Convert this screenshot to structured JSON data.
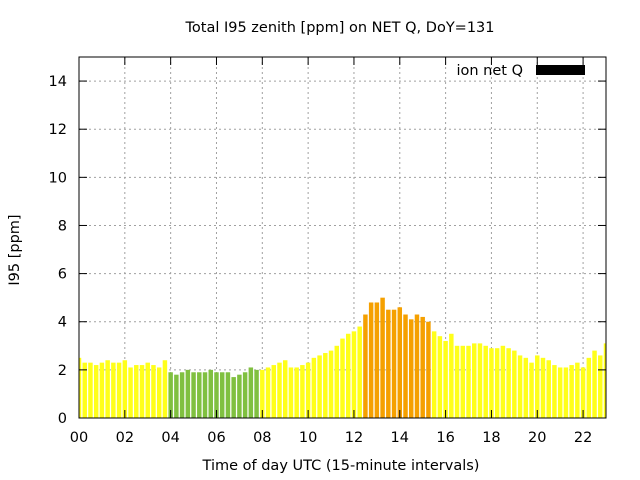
{
  "chart_data": {
    "type": "bar",
    "title": "Total I95 zenith [ppm] on NET Q, DoY=131",
    "xlabel": "Time of day UTC (15-minute intervals)",
    "ylabel": "I95 [ppm]",
    "xlim": [
      0,
      23
    ],
    "ylim": [
      0,
      15
    ],
    "x_step_hours": 0.25,
    "x_ticks": [
      {
        "value": 0,
        "label": "00"
      },
      {
        "value": 2,
        "label": "02"
      },
      {
        "value": 4,
        "label": "04"
      },
      {
        "value": 6,
        "label": "06"
      },
      {
        "value": 8,
        "label": "08"
      },
      {
        "value": 10,
        "label": "10"
      },
      {
        "value": 12,
        "label": "12"
      },
      {
        "value": 14,
        "label": "14"
      },
      {
        "value": 16,
        "label": "16"
      },
      {
        "value": 18,
        "label": "18"
      },
      {
        "value": 20,
        "label": "20"
      },
      {
        "value": 22,
        "label": "22"
      }
    ],
    "y_ticks": [
      {
        "value": 0,
        "label": "0"
      },
      {
        "value": 2,
        "label": "2"
      },
      {
        "value": 4,
        "label": "4"
      },
      {
        "value": 6,
        "label": "6"
      },
      {
        "value": 8,
        "label": "8"
      },
      {
        "value": 10,
        "label": "10"
      },
      {
        "value": 12,
        "label": "12"
      },
      {
        "value": 14,
        "label": "14"
      }
    ],
    "grid": true,
    "legend": {
      "label": "ion net Q",
      "color": "#000000",
      "placement": "top-right"
    },
    "colors": {
      "yellow": "#ffff1a",
      "green": "#80c040",
      "orange": "#f5a000",
      "grid": "#a0a0a0"
    },
    "series": [
      {
        "values": [
          2.5,
          2.3,
          2.3,
          2.2,
          2.3,
          2.4,
          2.3,
          2.3,
          2.4,
          2.1,
          2.2,
          2.2,
          2.3,
          2.2,
          2.1,
          2.4,
          1.9,
          1.8,
          1.9,
          2.0,
          1.9,
          1.9,
          1.9,
          2.0,
          1.9,
          1.9,
          1.9,
          1.7,
          1.8,
          1.9,
          2.1,
          2.0,
          2.0,
          2.1,
          2.2,
          2.3,
          2.4,
          2.1,
          2.1,
          2.2,
          2.3,
          2.5,
          2.6,
          2.7,
          2.8,
          3.0,
          3.3,
          3.5,
          3.6,
          3.8,
          4.3,
          4.8,
          4.8,
          5.0,
          4.5,
          4.5,
          4.6,
          4.3,
          4.1,
          4.3,
          4.2,
          4.0,
          3.6,
          3.4,
          3.2,
          3.5,
          3.0,
          3.0,
          3.0,
          3.1,
          3.1,
          3.0,
          2.9,
          2.9,
          3.0,
          2.9,
          2.8,
          2.6,
          2.5,
          2.3,
          2.6,
          2.5,
          2.4,
          2.2,
          2.1,
          2.1,
          2.2,
          2.3,
          2.1,
          2.5,
          2.8,
          2.6,
          3.1
        ],
        "colors": [
          "yellow",
          "yellow",
          "yellow",
          "yellow",
          "yellow",
          "yellow",
          "yellow",
          "yellow",
          "yellow",
          "yellow",
          "yellow",
          "yellow",
          "yellow",
          "yellow",
          "yellow",
          "yellow",
          "green",
          "green",
          "green",
          "green",
          "green",
          "green",
          "green",
          "green",
          "green",
          "green",
          "green",
          "green",
          "green",
          "green",
          "green",
          "green",
          "yellow",
          "yellow",
          "yellow",
          "yellow",
          "yellow",
          "yellow",
          "yellow",
          "yellow",
          "yellow",
          "yellow",
          "yellow",
          "yellow",
          "yellow",
          "yellow",
          "yellow",
          "yellow",
          "yellow",
          "yellow",
          "orange",
          "orange",
          "orange",
          "orange",
          "orange",
          "orange",
          "orange",
          "orange",
          "orange",
          "orange",
          "orange",
          "orange",
          "yellow",
          "yellow",
          "yellow",
          "yellow",
          "yellow",
          "yellow",
          "yellow",
          "yellow",
          "yellow",
          "yellow",
          "yellow",
          "yellow",
          "yellow",
          "yellow",
          "yellow",
          "yellow",
          "yellow",
          "yellow",
          "yellow",
          "yellow",
          "yellow",
          "yellow",
          "yellow",
          "yellow",
          "yellow",
          "yellow",
          "yellow",
          "yellow",
          "yellow",
          "yellow",
          "yellow"
        ]
      }
    ]
  }
}
